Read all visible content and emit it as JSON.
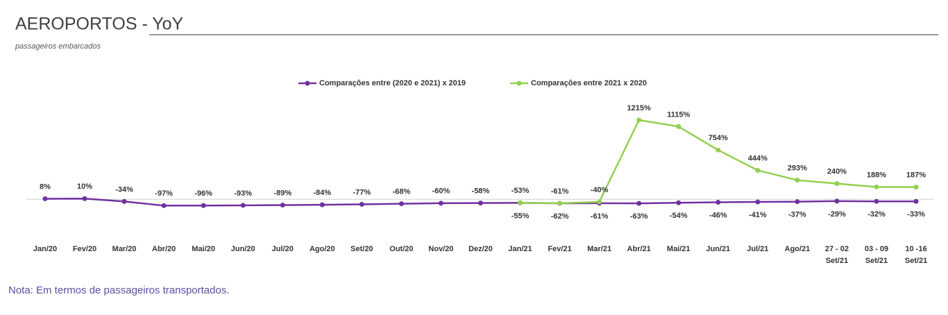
{
  "chart_data": {
    "type": "line",
    "title": "AEROPORTOS - YoY",
    "subtitle": "passageiros embarcados",
    "note": "Nota: Em termos de passageiros transportados.",
    "categories": [
      "Jan/20",
      "Fev/20",
      "Mar/20",
      "Abr/20",
      "Mai/20",
      "Jun/20",
      "Jul/20",
      "Ago/20",
      "Set/20",
      "Out/20",
      "Nov/20",
      "Dez/20",
      "Jan/21",
      "Fev/21",
      "Mar/21",
      "Abr/21",
      "Mai/21",
      "Jun/21",
      "Jul/21",
      "Ago/21",
      "27 - 02\nSet/21",
      "03 - 09\nSet/21",
      "10 -16\nSet/21"
    ],
    "ylim": [
      -200,
      1300
    ],
    "series": [
      {
        "name": "Comparações entre (2020 e 2021) x 2019",
        "color": "#7030a0",
        "values": [
          8,
          10,
          -34,
          -97,
          -96,
          -93,
          -89,
          -84,
          -77,
          -68,
          -60,
          -58,
          -55,
          -62,
          -61,
          -63,
          -54,
          -46,
          -41,
          -37,
          -29,
          -32,
          -33
        ],
        "value_labels": [
          "8%",
          "10%",
          "-34%",
          "-97%",
          "-96%",
          "-93%",
          "-89%",
          "-84%",
          "-77%",
          "-68%",
          "-60%",
          "-58%",
          "-55%",
          "-62%",
          "-61%",
          "-63%",
          "-54%",
          "-46%",
          "-41%",
          "-37%",
          "-29%",
          "-32%",
          "-33%"
        ]
      },
      {
        "name": "Comparações entre 2021 x 2020",
        "color": "#92d050",
        "values": [
          null,
          null,
          null,
          null,
          null,
          null,
          null,
          null,
          null,
          null,
          null,
          null,
          -53,
          -61,
          -40,
          1215,
          1115,
          754,
          444,
          293,
          240,
          188,
          187
        ],
        "value_labels": [
          null,
          null,
          null,
          null,
          null,
          null,
          null,
          null,
          null,
          null,
          null,
          null,
          "-53%",
          "-61%",
          "-40%",
          "1215%",
          "1115%",
          "754%",
          "444%",
          "293%",
          "240%",
          "188%",
          "187%"
        ]
      }
    ]
  }
}
